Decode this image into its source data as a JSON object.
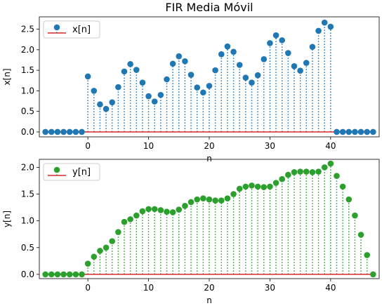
{
  "chart_data": [
    {
      "type": "stem",
      "title": "FIR Media Móvil",
      "xlabel": "n",
      "ylabel": "x[n]",
      "xlim": [
        -8,
        48
      ],
      "ylim": [
        -0.12,
        2.8
      ],
      "x_ticks": [
        0,
        10,
        20,
        30,
        40
      ],
      "y_ticks": [
        0.0,
        0.5,
        1.0,
        1.5,
        2.0,
        2.5
      ],
      "y_tick_labels": [
        "0.0",
        "0.5",
        "1.0",
        "1.5",
        "2.0",
        "2.5"
      ],
      "legend": "top-left",
      "color": "#1f77b4",
      "baseline_color": "#d62728",
      "series": [
        {
          "name": "x[n]",
          "x": [
            -7,
            -6,
            -5,
            -4,
            -3,
            -2,
            -1,
            0,
            1,
            2,
            3,
            4,
            5,
            6,
            7,
            8,
            9,
            10,
            11,
            12,
            13,
            14,
            15,
            16,
            17,
            18,
            19,
            20,
            21,
            22,
            23,
            24,
            25,
            26,
            27,
            28,
            29,
            30,
            31,
            32,
            33,
            34,
            35,
            36,
            37,
            38,
            39,
            40,
            41,
            42,
            43,
            44,
            45,
            46,
            47
          ],
          "values": [
            0,
            0,
            0,
            0,
            0,
            0,
            0,
            1.35,
            1.0,
            0.67,
            0.56,
            0.72,
            1.09,
            1.47,
            1.65,
            1.51,
            1.2,
            0.87,
            0.74,
            0.9,
            1.28,
            1.66,
            1.84,
            1.72,
            1.39,
            1.08,
            0.96,
            1.12,
            1.5,
            1.89,
            2.08,
            1.95,
            1.63,
            1.32,
            1.2,
            1.38,
            1.77,
            2.16,
            2.35,
            2.23,
            1.92,
            1.6,
            1.49,
            1.68,
            2.07,
            2.46,
            2.66,
            2.56,
            0,
            0,
            0,
            0,
            0,
            0,
            0
          ]
        }
      ]
    },
    {
      "type": "stem",
      "title": "",
      "xlabel": "n",
      "ylabel": "y[n]",
      "xlim": [
        -8,
        48
      ],
      "ylim": [
        -0.08,
        2.15
      ],
      "x_ticks": [
        0,
        10,
        20,
        30,
        40
      ],
      "y_ticks": [
        0.0,
        0.5,
        1.0,
        1.5,
        2.0
      ],
      "y_tick_labels": [
        "0.0",
        "0.5",
        "1.0",
        "1.5",
        "2.0"
      ],
      "legend": "top-left",
      "color": "#2ca02c",
      "baseline_color": "#d62728",
      "series": [
        {
          "name": "y[n]",
          "x": [
            -7,
            -6,
            -5,
            -4,
            -3,
            -2,
            -1,
            0,
            1,
            2,
            3,
            4,
            5,
            6,
            7,
            8,
            9,
            10,
            11,
            12,
            13,
            14,
            15,
            16,
            17,
            18,
            19,
            20,
            21,
            22,
            23,
            24,
            25,
            26,
            27,
            28,
            29,
            30,
            31,
            32,
            33,
            34,
            35,
            36,
            37,
            38,
            39,
            40,
            41,
            42,
            43,
            44,
            45,
            46,
            47
          ],
          "values": [
            0,
            0,
            0,
            0,
            0,
            0,
            0,
            0.2,
            0.33,
            0.44,
            0.5,
            0.62,
            0.79,
            0.98,
            1.03,
            1.1,
            1.18,
            1.22,
            1.22,
            1.2,
            1.17,
            1.16,
            1.21,
            1.28,
            1.35,
            1.4,
            1.42,
            1.4,
            1.38,
            1.38,
            1.42,
            1.5,
            1.6,
            1.64,
            1.66,
            1.64,
            1.63,
            1.64,
            1.71,
            1.78,
            1.86,
            1.91,
            1.92,
            1.92,
            1.91,
            1.92,
            2.0,
            2.07,
            1.84,
            1.64,
            1.4,
            1.1,
            0.74,
            0.36,
            0
          ]
        }
      ]
    }
  ]
}
